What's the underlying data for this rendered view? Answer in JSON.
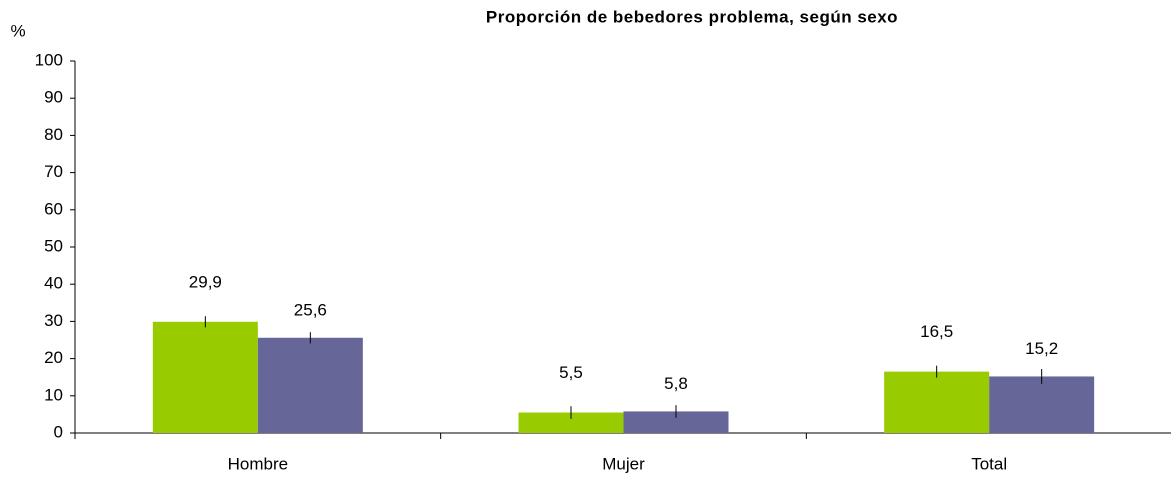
{
  "chart_data": {
    "type": "bar",
    "title": "Proporción de bebedores problema, según sexo",
    "y_label": "%",
    "categories": [
      "Hombre",
      "Mujer",
      "Total"
    ],
    "series": [
      {
        "color": "#99cc00",
        "values": [
          29.9,
          5.5,
          16.5
        ],
        "value_labels": [
          "29,9",
          "5,5",
          "16,5"
        ],
        "errors": [
          1.5,
          1.7,
          1.6
        ]
      },
      {
        "color": "#666699",
        "values": [
          25.6,
          5.8,
          15.2
        ],
        "value_labels": [
          "25,6",
          "5,8",
          "15,2"
        ],
        "errors": [
          1.5,
          1.7,
          2
        ]
      }
    ],
    "ylim": [
      0,
      100
    ],
    "yticks": [
      0,
      10,
      20,
      30,
      40,
      50,
      60,
      70,
      80,
      90,
      100
    ],
    "grid": false
  }
}
